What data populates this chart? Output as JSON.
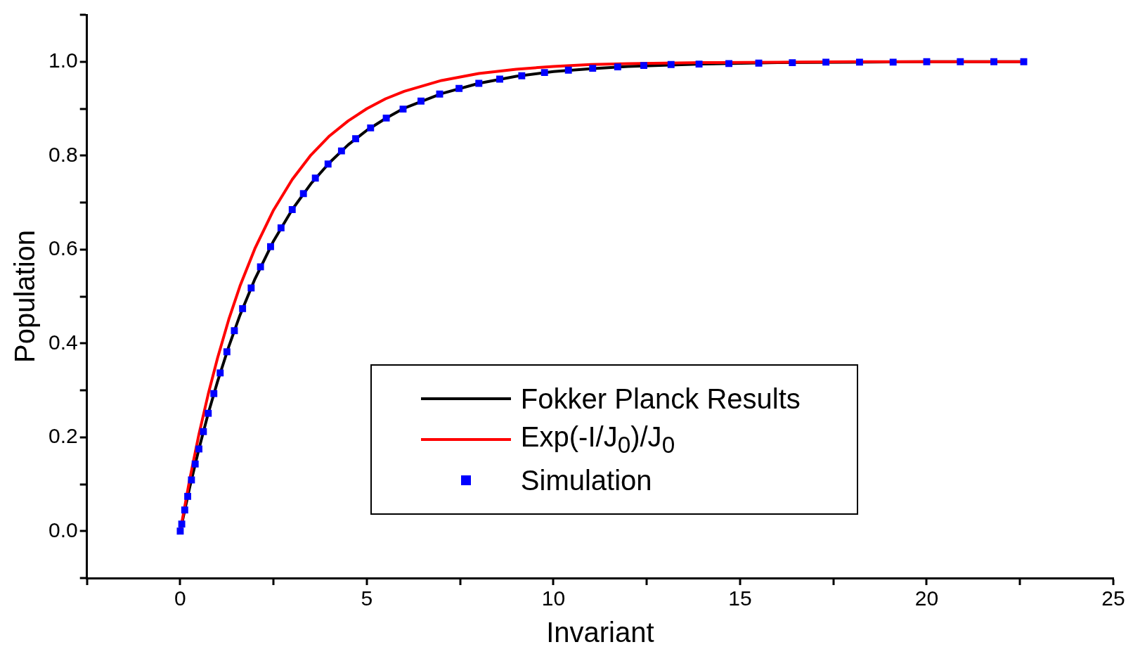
{
  "chart_data": {
    "type": "line",
    "xlabel": "Invariant",
    "ylabel": "Population",
    "xlim": [
      -2.5,
      25
    ],
    "ylim": [
      -0.1,
      1.1
    ],
    "xticks": [
      {
        "value": -2.5,
        "label": null
      },
      0,
      {
        "value": 2.5,
        "label": null
      },
      5,
      {
        "value": 7.5,
        "label": null
      },
      10,
      {
        "value": 12.5,
        "label": null
      },
      15,
      {
        "value": 17.5,
        "label": null
      },
      20,
      {
        "value": 22.5,
        "label": null
      },
      25
    ],
    "yticks": [
      {
        "value": -0.1,
        "label": null
      },
      {
        "value": 0,
        "label": "0.0"
      },
      {
        "value": 0.1,
        "label": null
      },
      0.2,
      {
        "value": 0.3,
        "label": null
      },
      0.4,
      {
        "value": 0.5,
        "label": null
      },
      0.6,
      {
        "value": 0.7,
        "label": null
      },
      0.8,
      {
        "value": 0.9,
        "label": null
      },
      {
        "value": 1,
        "label": "1.0"
      },
      {
        "value": 1.1,
        "label": null
      }
    ],
    "grid": false,
    "legend": "bottom",
    "series": [
      {
        "name": "Fokker Planck Results",
        "color": "#000000",
        "marker": "none",
        "line_style": "solid",
        "x": [
          0,
          0.25,
          0.5,
          0.75,
          1,
          1.3,
          1.6,
          2,
          2.5,
          3,
          3.5,
          4,
          4.5,
          5,
          5.5,
          6,
          7,
          8,
          9,
          10,
          11,
          12,
          14,
          16,
          18,
          20,
          22.6
        ],
        "values": [
          0,
          0.092,
          0.175,
          0.251,
          0.319,
          0.393,
          0.46,
          0.537,
          0.618,
          0.685,
          0.74,
          0.785,
          0.823,
          0.854,
          0.879,
          0.901,
          0.932,
          0.954,
          0.969,
          0.979,
          0.985,
          0.99,
          0.995,
          0.998,
          0.999,
          1,
          1
        ]
      },
      {
        "name": "Exp(-I/J$_{0}$)/J$_{0}$",
        "color": "#ff0000",
        "marker": "none",
        "line_style": "solid",
        "x": [
          0,
          0.25,
          0.5,
          0.75,
          1,
          1.3,
          1.6,
          2,
          2.5,
          3,
          3.5,
          4,
          4.5,
          5,
          5.5,
          6,
          7,
          8,
          9,
          10,
          11,
          12,
          14,
          16,
          18,
          20,
          22.6
        ],
        "values": [
          0,
          0.109,
          0.206,
          0.292,
          0.369,
          0.451,
          0.522,
          0.602,
          0.684,
          0.749,
          0.801,
          0.842,
          0.874,
          0.9,
          0.921,
          0.937,
          0.96,
          0.975,
          0.984,
          0.99,
          0.994,
          0.996,
          0.998,
          0.999,
          1,
          1,
          1
        ]
      },
      {
        "name": "Simulation",
        "type": "scatter",
        "color": "#0000ff",
        "marker": "square",
        "x": [
          0,
          0.04,
          0.12,
          0.2,
          0.3,
          0.4,
          0.5,
          0.62,
          0.75,
          0.9,
          1.07,
          1.25,
          1.45,
          1.67,
          1.9,
          2.15,
          2.42,
          2.7,
          3,
          3.3,
          3.62,
          3.96,
          4.32,
          4.7,
          5.1,
          5.52,
          5.97,
          6.45,
          6.95,
          7.47,
          8,
          8.56,
          9.15,
          9.76,
          10.4,
          11.05,
          11.72,
          12.42,
          13.15,
          13.9,
          14.7,
          15.5,
          16.4,
          17.3,
          18.2,
          19.1,
          20,
          20.9,
          21.8,
          22.6
        ],
        "values": [
          0,
          0.015,
          0.045,
          0.074,
          0.109,
          0.143,
          0.175,
          0.212,
          0.251,
          0.293,
          0.337,
          0.382,
          0.427,
          0.474,
          0.518,
          0.563,
          0.606,
          0.646,
          0.685,
          0.719,
          0.752,
          0.782,
          0.81,
          0.836,
          0.859,
          0.88,
          0.899,
          0.916,
          0.931,
          0.943,
          0.954,
          0.963,
          0.97,
          0.977,
          0.982,
          0.986,
          0.989,
          0.992,
          0.994,
          0.995,
          0.996,
          0.997,
          0.998,
          0.999,
          0.999,
          0.999,
          1,
          1,
          1,
          1
        ]
      }
    ]
  }
}
